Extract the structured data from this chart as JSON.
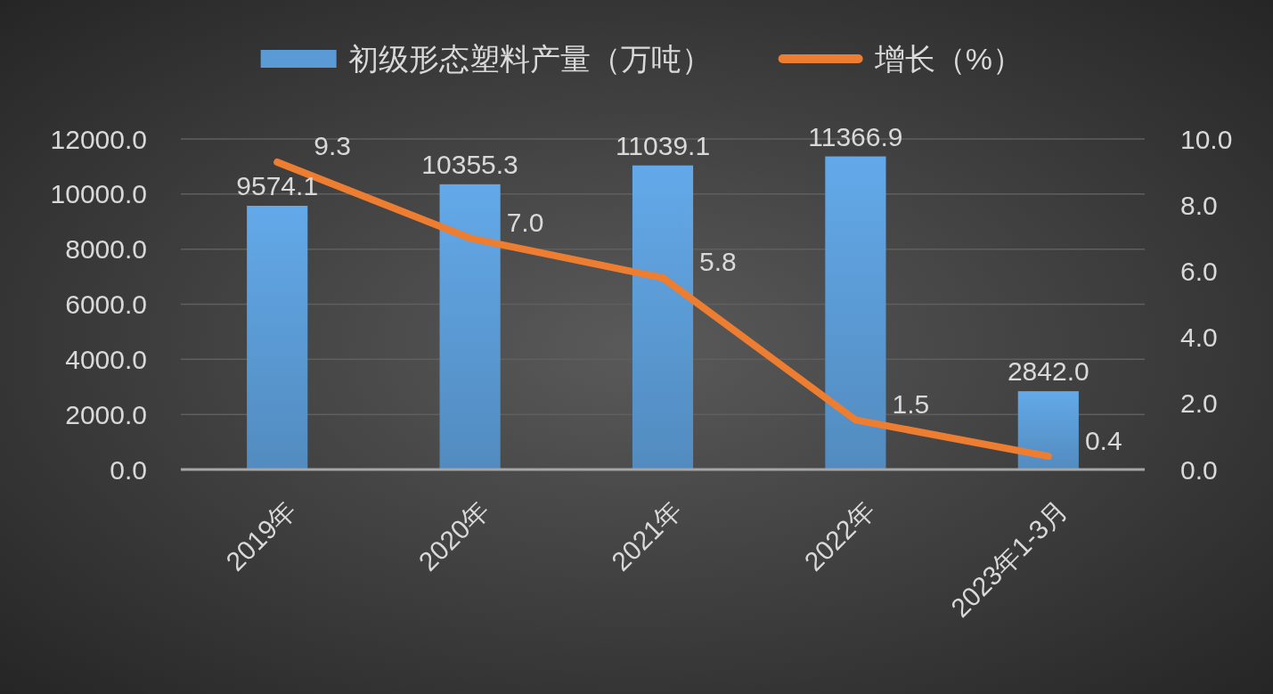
{
  "chart_data": {
    "type": "bar",
    "categories": [
      "2019年",
      "2020年",
      "2021年",
      "2022年",
      "2023年1-3月"
    ],
    "series": [
      {
        "name": "初级形态塑料产量（万吨）",
        "color": "#5b9bd5",
        "values": [
          9574.1,
          10355.3,
          11039.1,
          11366.9,
          2842.0
        ],
        "value_labels": [
          "9574.1",
          "10355.3",
          "11039.1",
          "11366.9",
          "2842.0"
        ]
      },
      {
        "name": "增长（%）",
        "type": "line",
        "axis": "y2",
        "color": "#ed7d31",
        "values": [
          9.3,
          7.0,
          5.8,
          1.5,
          0.4
        ],
        "value_labels": [
          "9.3",
          "7.0",
          "5.8",
          "1.5",
          "0.4"
        ]
      }
    ],
    "ylim": [
      0,
      12000
    ],
    "yticks": [
      {
        "value": 0,
        "label": "0.0"
      },
      {
        "value": 2000,
        "label": "2000.0"
      },
      {
        "value": 4000,
        "label": "4000.0"
      },
      {
        "value": 6000,
        "label": "6000.0"
      },
      {
        "value": 8000,
        "label": "8000.0"
      },
      {
        "value": 10000,
        "label": "10000.0"
      },
      {
        "value": 12000,
        "label": "12000.0"
      }
    ],
    "y2lim": [
      0,
      10
    ],
    "y2ticks": [
      {
        "value": 0,
        "label": "0.0"
      },
      {
        "value": 2,
        "label": "2.0"
      },
      {
        "value": 4,
        "label": "4.0"
      },
      {
        "value": 6,
        "label": "6.0"
      },
      {
        "value": 8,
        "label": "8.0"
      },
      {
        "value": 10,
        "label": "10.0"
      }
    ],
    "grid": "y",
    "legend": "top"
  }
}
